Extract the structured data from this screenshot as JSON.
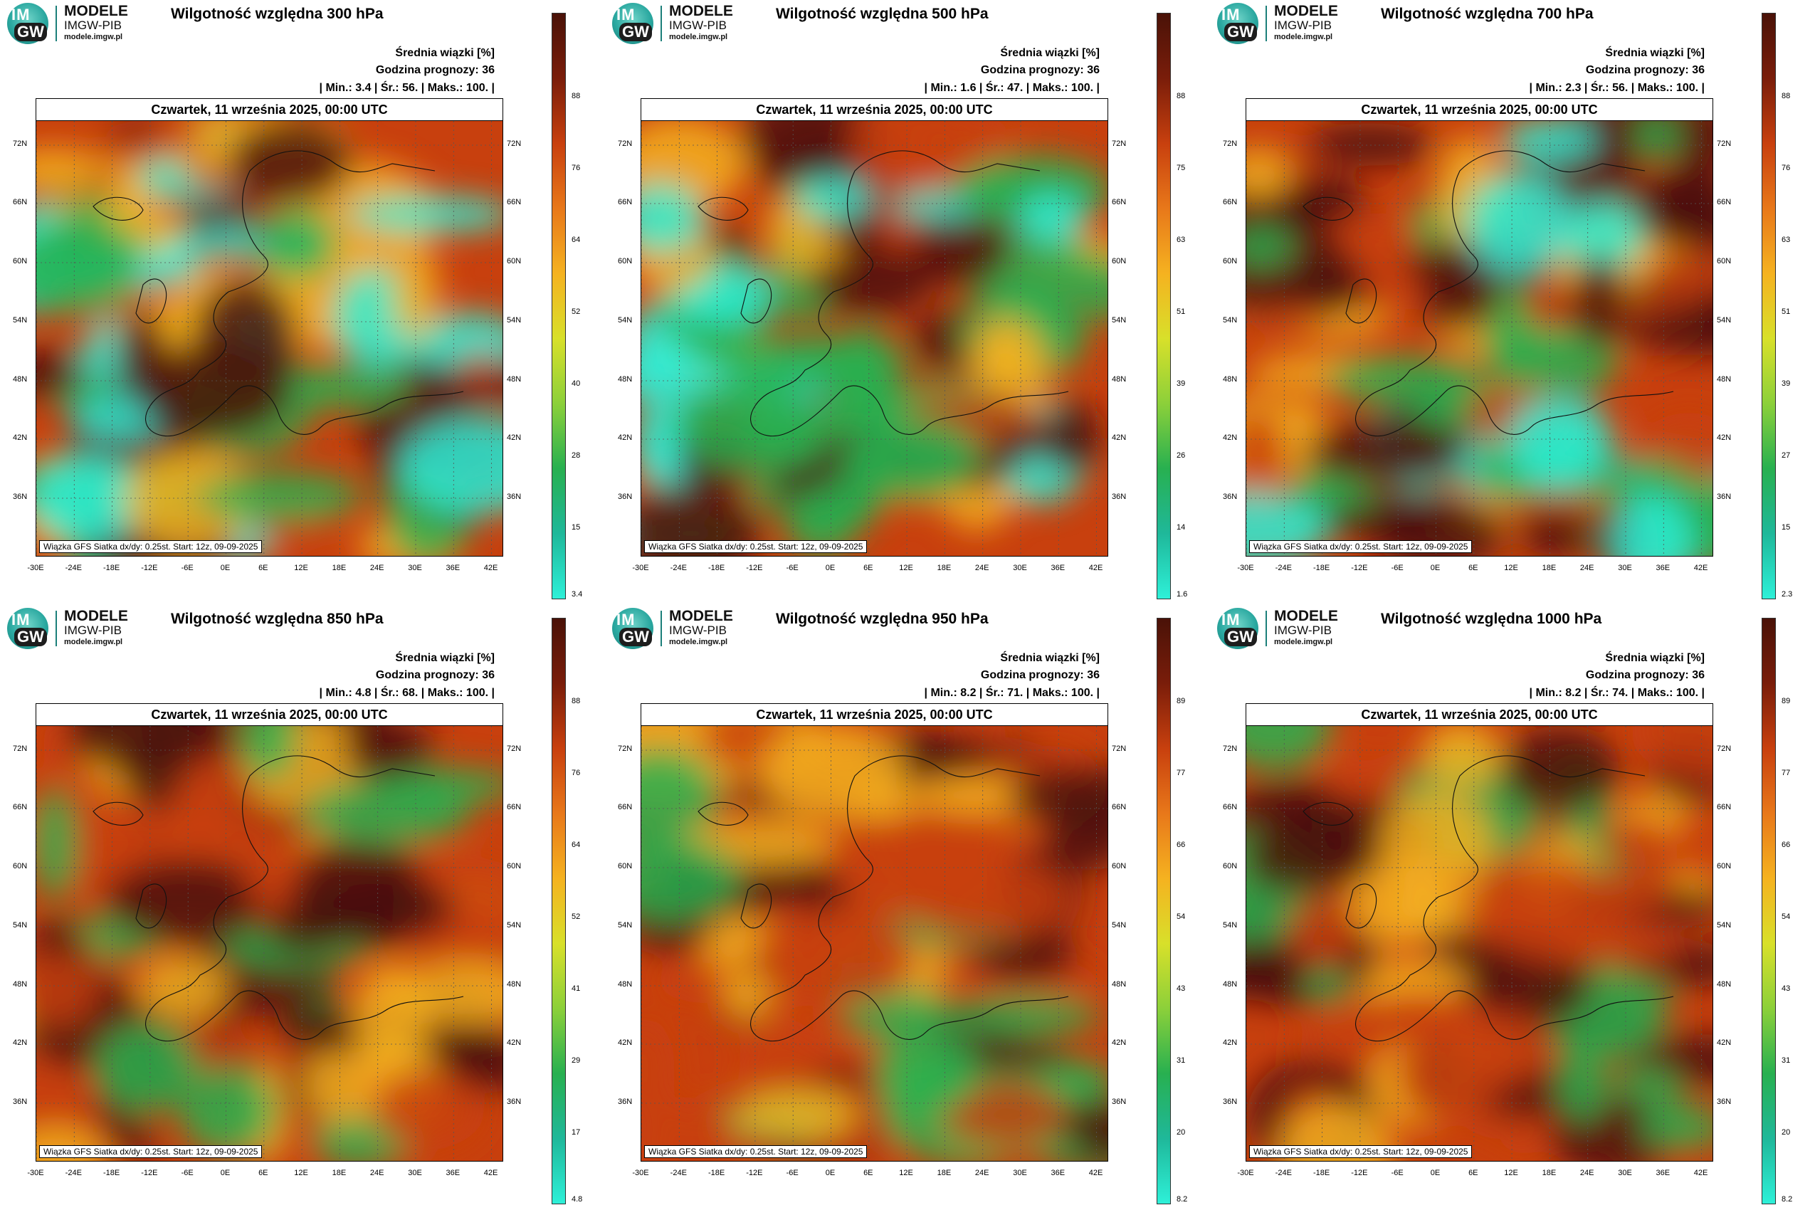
{
  "logo": {
    "line1": "MODELE",
    "line2": "IMGW-PIB",
    "line3": "modele.imgw.pl",
    "badge_top": "IM",
    "badge_bottom": "GW"
  },
  "common": {
    "legend_title": "Średnia wiązki [%]",
    "forecast_hour": "Godzina prognozy: 36",
    "date": "Czwartek, 11 września 2025, 00:00 UTC",
    "footer": "Wiązka GFS Siatka dx/dy: 0.25st. Start: 12z, 09-09-2025",
    "lat_labels": [
      "72N",
      "66N",
      "60N",
      "54N",
      "48N",
      "42N",
      "36N"
    ],
    "lon_labels": [
      "-30E",
      "-24E",
      "-18E",
      "-12E",
      "-6E",
      "0E",
      "6E",
      "12E",
      "18E",
      "24E",
      "30E",
      "36E",
      "42E"
    ]
  },
  "panels": [
    {
      "title": "Wilgotność względna 300 hPa",
      "stats": "| Min.:    3.4 | Śr.:    56. | Maks.:   100. |",
      "min": 3.4,
      "mean": 56,
      "max": 100,
      "ticks": [
        "88",
        "76",
        "64",
        "52",
        "40",
        "28",
        "15",
        "3.4"
      ]
    },
    {
      "title": "Wilgotność względna 500 hPa",
      "stats": "| Min.:    1.6 | Śr.:    47. | Maks.:   100. |",
      "min": 1.6,
      "mean": 47,
      "max": 100,
      "ticks": [
        "88",
        "75",
        "63",
        "51",
        "39",
        "26",
        "14",
        "1.6"
      ]
    },
    {
      "title": "Wilgotność względna 700 hPa",
      "stats": "| Min.:    2.3 | Śr.:    56. | Maks.:   100. |",
      "min": 2.3,
      "mean": 56,
      "max": 100,
      "ticks": [
        "88",
        "76",
        "63",
        "51",
        "39",
        "27",
        "15",
        "2.3"
      ]
    },
    {
      "title": "Wilgotność względna 850 hPa",
      "stats": "| Min.:    4.8 | Śr.:    68. | Maks.:   100. |",
      "min": 4.8,
      "mean": 68,
      "max": 100,
      "ticks": [
        "88",
        "76",
        "64",
        "52",
        "41",
        "29",
        "17",
        "4.8"
      ]
    },
    {
      "title": "Wilgotność względna 950 hPa",
      "stats": "| Min.:    8.2 | Śr.:    71. | Maks.:   100. |",
      "min": 8.2,
      "mean": 71,
      "max": 100,
      "ticks": [
        "89",
        "77",
        "66",
        "54",
        "43",
        "31",
        "20",
        "8.2"
      ]
    },
    {
      "title": "Wilgotność względna 1000 hPa",
      "stats": "| Min.:    8.2 | Śr.:    74. | Maks.:   100. |",
      "min": 8.2,
      "mean": 74,
      "max": 100,
      "ticks": [
        "89",
        "77",
        "66",
        "54",
        "43",
        "31",
        "20",
        "8.2"
      ]
    }
  ],
  "colors": {
    "high": "#4a1208",
    "mid_high": "#c8400e",
    "mid": "#f5b220",
    "mid_low": "#28b050",
    "low": "#2ef0d8"
  }
}
